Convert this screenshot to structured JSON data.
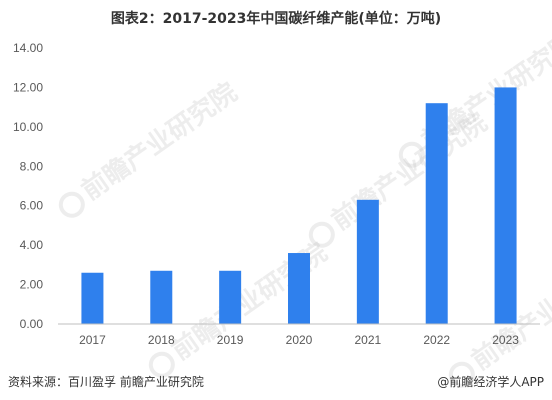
{
  "title": "图表2：2017-2023年中国碳纤维产能(单位：万吨)",
  "watermark": "前瞻产业研究院",
  "source": "资料来源：百川盈孚 前瞻产业研究院",
  "brand": "@前瞻经济学人APP",
  "colors": {
    "bar": "#2F80ED",
    "axis": "#BFBFBF",
    "text": "#595959"
  },
  "chart_data": {
    "type": "bar",
    "categories": [
      "2017",
      "2018",
      "2019",
      "2020",
      "2021",
      "2022",
      "2023"
    ],
    "values": [
      2.6,
      2.7,
      2.7,
      3.6,
      6.3,
      11.2,
      12.0
    ],
    "ylim": [
      0,
      14
    ],
    "yticks": [
      "0.00",
      "2.00",
      "4.00",
      "6.00",
      "8.00",
      "10.00",
      "12.00",
      "14.00"
    ],
    "grid": false,
    "legend": "none"
  }
}
